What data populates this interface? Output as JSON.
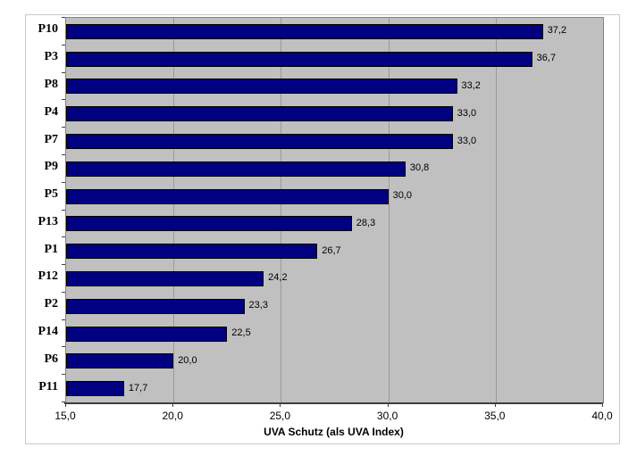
{
  "chart_data": {
    "type": "bar",
    "orientation": "horizontal",
    "title": "",
    "xlabel": "UVA Schutz (als UVA Index)",
    "ylabel": "",
    "categories": [
      "P10",
      "P3",
      "P8",
      "P4",
      "P7",
      "P9",
      "P5",
      "P13",
      "P1",
      "P12",
      "P2",
      "P14",
      "P6",
      "P11"
    ],
    "values": [
      37.2,
      36.7,
      33.2,
      33.0,
      33.0,
      30.8,
      30.0,
      28.3,
      26.7,
      24.2,
      23.3,
      22.5,
      20.0,
      17.7
    ],
    "value_labels": [
      "37,2",
      "36,7",
      "33,2",
      "33,0",
      "33,0",
      "30,8",
      "30,0",
      "28,3",
      "26,7",
      "24,2",
      "23,3",
      "22,5",
      "20,0",
      "17,7"
    ],
    "xlim": [
      15,
      40
    ],
    "xticks": [
      {
        "value": 15,
        "label": "15,0"
      },
      {
        "value": 20,
        "label": "20,0"
      },
      {
        "value": 25,
        "label": "25,0"
      },
      {
        "value": 30,
        "label": "30,0"
      },
      {
        "value": 35,
        "label": "35,0"
      },
      {
        "value": 40,
        "label": "40,0"
      }
    ],
    "grid": true,
    "legend": "none",
    "colors": {
      "bar_fill": "#000080",
      "bar_border": "#000000",
      "plot_background": "#c0c0c0",
      "gridline": "#9a9a9a",
      "axis": "#3f3f3f",
      "chart_background": "#ffffff",
      "frame_border": "#c9c9c9"
    }
  }
}
